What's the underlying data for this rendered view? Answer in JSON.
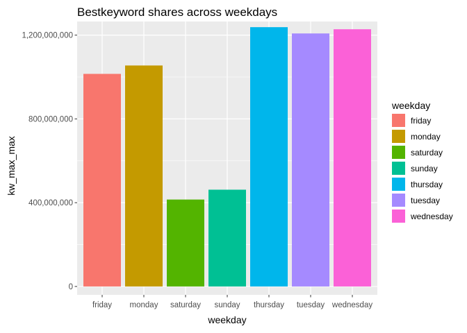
{
  "chart_data": {
    "type": "bar",
    "title": "Bestkeyword shares across weekdays",
    "xlabel": "weekday",
    "ylabel": "kw_max_max",
    "categories": [
      "friday",
      "monday",
      "saturday",
      "sunday",
      "thursday",
      "tuesday",
      "wednesday"
    ],
    "values": [
      1015000000,
      1055000000,
      415000000,
      462000000,
      1238000000,
      1208000000,
      1228000000
    ],
    "colors": [
      "#F8766D",
      "#C49A00",
      "#53B400",
      "#00C094",
      "#00B6EB",
      "#A58AFF",
      "#FB61D7"
    ],
    "ylim": [
      -40000000,
      1265000000
    ],
    "yticks": [
      0,
      400000000,
      800000000,
      1200000000
    ],
    "ytick_labels": [
      "0",
      "400,000,000",
      "800,000,000",
      "1,200,000,000"
    ],
    "grid": true,
    "panel_background": "#EBEBEB",
    "legend": {
      "title": "weekday",
      "position": "right",
      "entries": [
        "friday",
        "monday",
        "saturday",
        "sunday",
        "thursday",
        "tuesday",
        "wednesday"
      ]
    }
  }
}
